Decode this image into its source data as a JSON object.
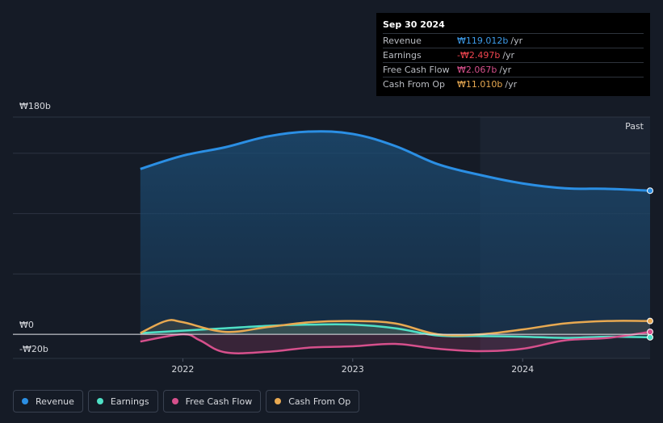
{
  "tooltip": {
    "date": "Sep 30 2024",
    "rows": [
      {
        "label": "Revenue",
        "value": "₩119.012b",
        "unit": "/yr",
        "color": "#3d9be9"
      },
      {
        "label": "Earnings",
        "value": "-₩2.497b",
        "unit": "/yr",
        "color": "#f0454f"
      },
      {
        "label": "Free Cash Flow",
        "value": "₩2.067b",
        "unit": "/yr",
        "color": "#d6508c"
      },
      {
        "label": "Cash From Op",
        "value": "₩11.010b",
        "unit": "/yr",
        "color": "#e8a951"
      }
    ]
  },
  "past_label": "Past",
  "legend": [
    {
      "label": "Revenue",
      "color": "#2b8fe4"
    },
    {
      "label": "Earnings",
      "color": "#4fe0c6"
    },
    {
      "label": "Free Cash Flow",
      "color": "#d6508c"
    },
    {
      "label": "Cash From Op",
      "color": "#e8a951"
    }
  ],
  "chart_data": {
    "type": "line",
    "y_tick_labels": [
      "₩180b",
      "₩0",
      "-₩20b"
    ],
    "x_tick_labels": [
      "2022",
      "2023",
      "2024"
    ],
    "ylim": [
      -20,
      180
    ],
    "xlim": [
      2021.0,
      2024.75
    ],
    "highlight_start": 2023.75,
    "grid": true,
    "legend_position": "bottom-left",
    "series": [
      {
        "name": "Revenue",
        "color": "#2b8fe4",
        "x": [
          2021.75,
          2022.0,
          2022.25,
          2022.5,
          2022.75,
          2023.0,
          2023.25,
          2023.5,
          2023.75,
          2024.0,
          2024.25,
          2024.5,
          2024.75
        ],
        "y": [
          137,
          148,
          155,
          164,
          168,
          166,
          156,
          141,
          132,
          125,
          121,
          120.5,
          119
        ]
      },
      {
        "name": "Earnings",
        "color": "#4fe0c6",
        "x": [
          2021.75,
          2022.0,
          2022.25,
          2022.5,
          2022.75,
          2023.0,
          2023.25,
          2023.5,
          2023.75,
          2024.0,
          2024.25,
          2024.5,
          2024.75
        ],
        "y": [
          1,
          3,
          5,
          7,
          8,
          8,
          5,
          -1,
          -1.5,
          -2,
          -3,
          -2,
          -2.5
        ]
      },
      {
        "name": "Free Cash Flow",
        "color": "#d6508c",
        "x": [
          2021.75,
          2022.0,
          2022.1,
          2022.25,
          2022.5,
          2022.75,
          2023.0,
          2023.25,
          2023.5,
          2023.75,
          2024.0,
          2024.25,
          2024.5,
          2024.75
        ],
        "y": [
          -6,
          0,
          -5,
          -15,
          -14.5,
          -11,
          -10,
          -8,
          -12,
          -14,
          -12,
          -5,
          -3,
          2
        ]
      },
      {
        "name": "Cash From Op",
        "color": "#e8a951",
        "x": [
          2021.75,
          2021.9,
          2022.0,
          2022.25,
          2022.5,
          2022.75,
          2023.0,
          2023.25,
          2023.5,
          2023.75,
          2024.0,
          2024.25,
          2024.5,
          2024.75
        ],
        "y": [
          1,
          11,
          10,
          2,
          6,
          10,
          11,
          9,
          0,
          0,
          4,
          9,
          11,
          11
        ]
      }
    ]
  }
}
